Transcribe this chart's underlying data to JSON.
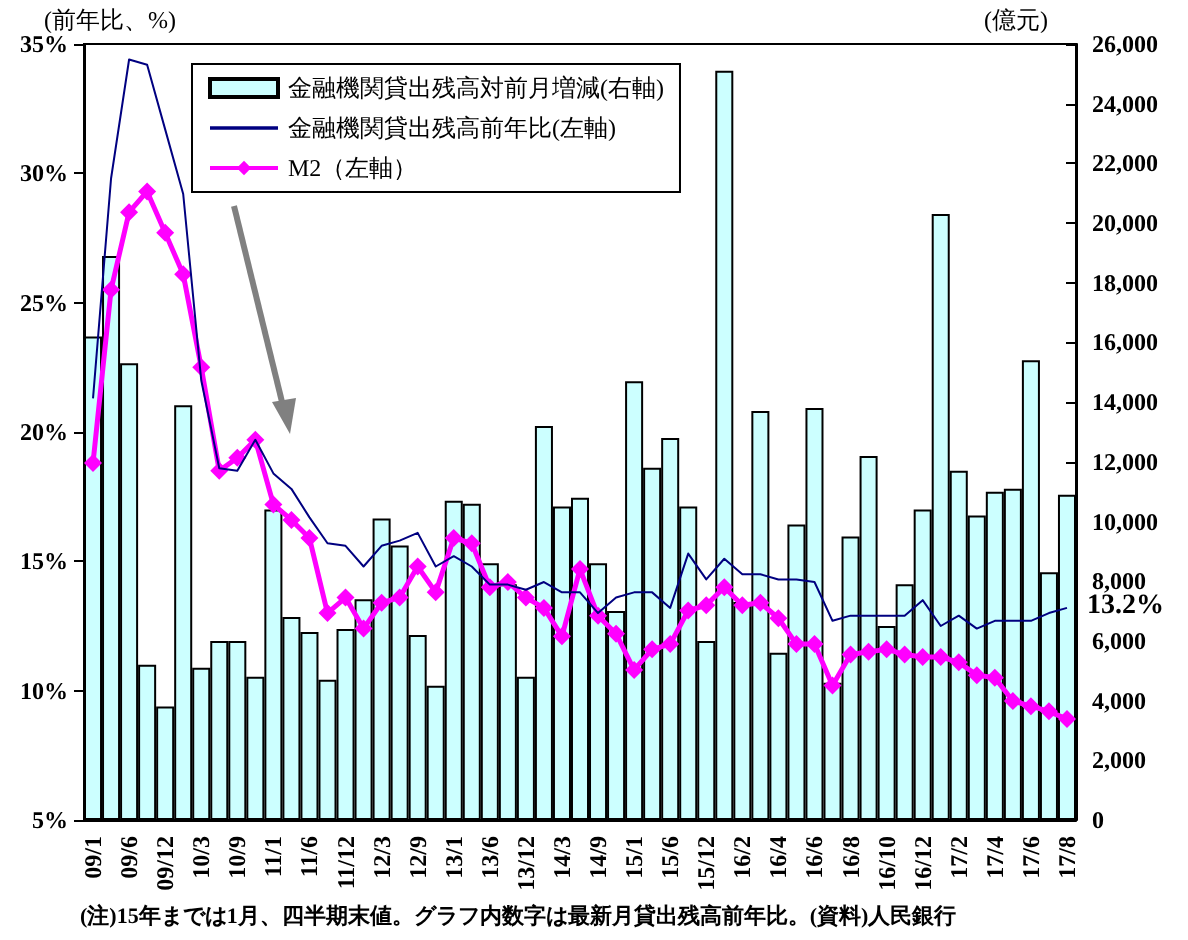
{
  "chart_data": {
    "type": "bar",
    "ylabel": "(前年比、%)",
    "y2label": "(億元)",
    "categories": [
      "09/1",
      null,
      "09/6",
      null,
      "09/12",
      null,
      "10/3",
      null,
      "10/9",
      null,
      "11/1",
      null,
      "11/6",
      null,
      "11/12",
      null,
      "12/3",
      null,
      "12/9",
      null,
      "13/1",
      null,
      "13/6",
      null,
      "13/12",
      null,
      "14/3",
      null,
      "14/9",
      null,
      "15/1",
      null,
      "15/6",
      null,
      "15/12",
      null,
      "16/2",
      null,
      "16/4",
      null,
      "16/6",
      null,
      "16/8",
      null,
      "16/10",
      null,
      "16/12",
      null,
      "17/2",
      null,
      "17/4",
      null,
      "17/6",
      null,
      "17/8"
    ],
    "series": [
      {
        "name": "金融機関貸出残高対前月増減(右軸)",
        "axis": "y2",
        "color": "#ccffff",
        "values": [
          16200,
          18900,
          15300,
          5200,
          3800,
          13900,
          5100,
          6000,
          6000,
          4800,
          10400,
          6800,
          6300,
          4700,
          6400,
          7400,
          10100,
          9200,
          6200,
          4500,
          10700,
          10600,
          8600,
          7900,
          4800,
          13200,
          10500,
          10800,
          8600,
          7000,
          14700,
          11800,
          12800,
          10500,
          6000,
          25100,
          7300,
          13700,
          5600,
          9900,
          13800,
          4600,
          9500,
          12200,
          6500,
          7900,
          10400,
          20300,
          11700,
          10200,
          11000,
          11100,
          15400,
          8300,
          10900
        ]
      },
      {
        "name": "金融機関貸出残高前年比(左軸)",
        "type": "line",
        "marker": "none",
        "color": "#000080",
        "values": [
          21.3,
          29.8,
          34.4,
          34.2,
          31.7,
          29.2,
          22.0,
          18.6,
          18.5,
          19.7,
          18.4,
          17.8,
          16.7,
          15.7,
          15.6,
          14.8,
          15.6,
          15.8,
          16.1,
          14.8,
          15.2,
          14.8,
          14.1,
          14.1,
          13.9,
          14.2,
          13.8,
          13.8,
          13.0,
          13.6,
          13.8,
          13.8,
          13.2,
          15.3,
          14.3,
          15.1,
          14.5,
          14.5,
          14.3,
          14.3,
          14.2,
          12.7,
          12.9,
          12.9,
          12.9,
          12.9,
          13.5,
          12.5,
          12.9,
          12.4,
          12.7,
          12.7,
          12.7,
          13.0,
          13.2
        ]
      },
      {
        "name": "M2（左軸）",
        "type": "line",
        "marker": "diamond",
        "color": "#ff00ff",
        "values": [
          18.8,
          25.5,
          28.5,
          29.3,
          27.7,
          26.1,
          22.5,
          18.5,
          19.0,
          19.7,
          17.2,
          16.6,
          15.9,
          13.0,
          13.6,
          12.4,
          13.4,
          13.6,
          14.8,
          13.8,
          15.9,
          15.7,
          14.0,
          14.2,
          13.6,
          13.2,
          12.1,
          14.7,
          12.9,
          12.2,
          10.8,
          11.6,
          11.8,
          13.1,
          13.3,
          14.0,
          13.3,
          13.4,
          12.8,
          11.8,
          11.8,
          10.2,
          11.4,
          11.5,
          11.6,
          11.4,
          11.3,
          11.3,
          11.1,
          10.6,
          10.5,
          9.6,
          9.4,
          9.2,
          8.9
        ]
      }
    ],
    "ylim": [
      5,
      35
    ],
    "yticks": [
      {
        "value": 5,
        "label": "5%"
      },
      {
        "value": 10,
        "label": "10%"
      },
      {
        "value": 15,
        "label": "15%"
      },
      {
        "value": 20,
        "label": "20%"
      },
      {
        "value": 25,
        "label": "25%"
      },
      {
        "value": 30,
        "label": "30%"
      },
      {
        "value": 35,
        "label": "35%"
      }
    ],
    "y2lim": [
      0,
      26000
    ],
    "y2ticks": [
      0,
      {
        "value": 2000,
        "label": "2,000"
      },
      {
        "value": 4000,
        "label": "4,000"
      },
      {
        "value": 6000,
        "label": "6,000"
      },
      {
        "value": 8000,
        "label": "8,000"
      },
      {
        "value": 10000,
        "label": "10,000"
      },
      {
        "value": 12000,
        "label": "12,000"
      },
      {
        "value": 14000,
        "label": "14,000"
      },
      {
        "value": 16000,
        "label": "16,000"
      },
      {
        "value": 18000,
        "label": "18,000"
      },
      {
        "value": 20000,
        "label": "20,000"
      },
      {
        "value": 22000,
        "label": "22,000"
      },
      {
        "value": 24000,
        "label": "24,000"
      },
      {
        "value": 26000,
        "label": "26,000"
      }
    ],
    "grid": false,
    "legend": "top",
    "annotations": [
      {
        "text": "13.2%",
        "x": "17/8",
        "y": 13.2
      },
      "(注)15年までは1月、四半期末値。グラフ内数字は最新月貸出残高前年比。(資料)人民銀行"
    ]
  }
}
